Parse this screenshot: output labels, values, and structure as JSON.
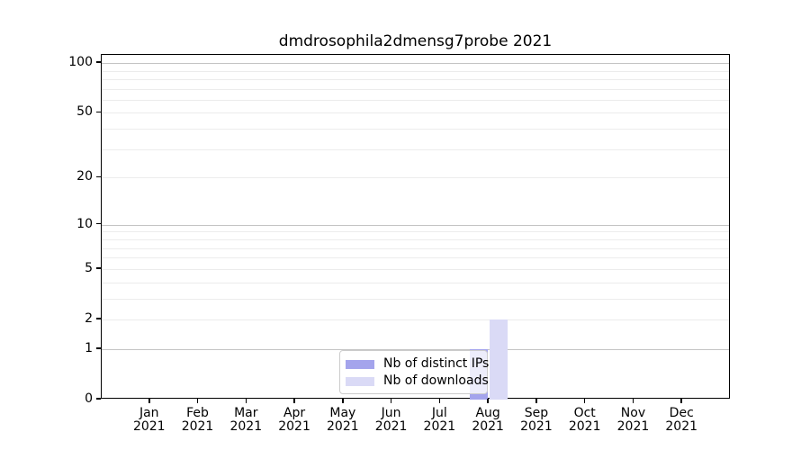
{
  "chart_data": {
    "type": "bar",
    "title": "dmdrosophila2dmensg7probe 2021",
    "categories": [
      {
        "month": "Jan",
        "year": "2021"
      },
      {
        "month": "Feb",
        "year": "2021"
      },
      {
        "month": "Mar",
        "year": "2021"
      },
      {
        "month": "Apr",
        "year": "2021"
      },
      {
        "month": "May",
        "year": "2021"
      },
      {
        "month": "Jun",
        "year": "2021"
      },
      {
        "month": "Jul",
        "year": "2021"
      },
      {
        "month": "Aug",
        "year": "2021"
      },
      {
        "month": "Sep",
        "year": "2021"
      },
      {
        "month": "Oct",
        "year": "2021"
      },
      {
        "month": "Nov",
        "year": "2021"
      },
      {
        "month": "Dec",
        "year": "2021"
      }
    ],
    "series": [
      {
        "name": "Nb of distinct IPs",
        "color": "#a4a4ec",
        "values": [
          0,
          0,
          0,
          0,
          0,
          0,
          0,
          1,
          0,
          0,
          0,
          0
        ]
      },
      {
        "name": "Nb of downloads",
        "color": "#dadaf6",
        "values": [
          0,
          0,
          0,
          0,
          0,
          0,
          0,
          2,
          0,
          0,
          0,
          0
        ]
      }
    ],
    "yscale": "log1p",
    "ylim": [
      0,
      112
    ],
    "yticks": [
      {
        "value": 0,
        "label": "0"
      },
      {
        "value": 1,
        "label": "1"
      },
      {
        "value": 2,
        "label": "2"
      },
      {
        "value": 5,
        "label": "5"
      },
      {
        "value": 10,
        "label": "10"
      },
      {
        "value": 20,
        "label": "20"
      },
      {
        "value": 50,
        "label": "50"
      },
      {
        "value": 100,
        "label": "100"
      }
    ],
    "gridlines_major": [
      1,
      10,
      100
    ],
    "gridlines_minor": [
      2,
      3,
      4,
      5,
      6,
      7,
      8,
      9,
      20,
      30,
      40,
      50,
      60,
      70,
      80,
      90
    ],
    "grid": true,
    "legend_position": "bottom-center",
    "colors": {
      "grid_major": "#c4c4c4",
      "grid_minor": "#ececec",
      "spine": "#000000",
      "text": "#000000"
    }
  }
}
